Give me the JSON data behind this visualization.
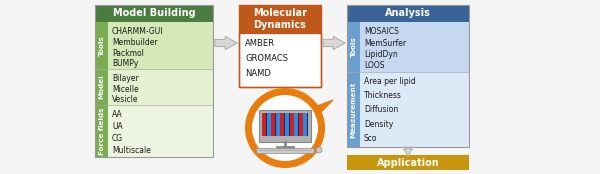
{
  "bg_color": "#f5f5f5",
  "model_building": {
    "header_text": "Model Building",
    "header_bg": "#4a7c3f",
    "header_fg": "#ffffff",
    "sections": [
      {
        "label": "Tools",
        "items": [
          "CHARMM-GUI",
          "Membuilder",
          "Packmol",
          "BUMPy"
        ],
        "bg": "#d4e8b8",
        "label_bg": "#7aad52"
      },
      {
        "label": "Model",
        "items": [
          "Bilayer",
          "Micelle",
          "Vesicle"
        ],
        "bg": "#e4f0d0",
        "label_bg": "#7aad52"
      },
      {
        "label": "Force fields",
        "items": [
          "AA",
          "UA",
          "CG",
          "Multiscale"
        ],
        "bg": "#edf5e0",
        "label_bg": "#7aad52"
      }
    ]
  },
  "mol_dynamics": {
    "header_text": "Molecular\nDynamics",
    "header_bg": "#c0581a",
    "header_fg": "#ffffff",
    "items": [
      "AMBER",
      "GROMACS",
      "NAMD"
    ],
    "box_border": "#c0581a"
  },
  "analysis": {
    "header_text": "Analysis",
    "header_bg": "#3a6498",
    "header_fg": "#ffffff",
    "sections": [
      {
        "label": "Tools",
        "items": [
          "MOSAICS",
          "MemSurfer",
          "LipidDyn",
          "LOOS"
        ],
        "bg": "#c5d8f0",
        "label_bg": "#6b9fcf"
      },
      {
        "label": "Measurement",
        "items": [
          "Area per lipid",
          "Thickness",
          "Diffusion",
          "Density",
          "Sco"
        ],
        "bg": "#dce9f7",
        "label_bg": "#6b9fcf"
      }
    ]
  },
  "application": {
    "text": "Application",
    "bg": "#c8960c",
    "fg": "#ffffff"
  },
  "circle_color": "#e87d0e",
  "arrow_fill": "#d8d8d8",
  "arrow_edge": "#aaaaaa"
}
